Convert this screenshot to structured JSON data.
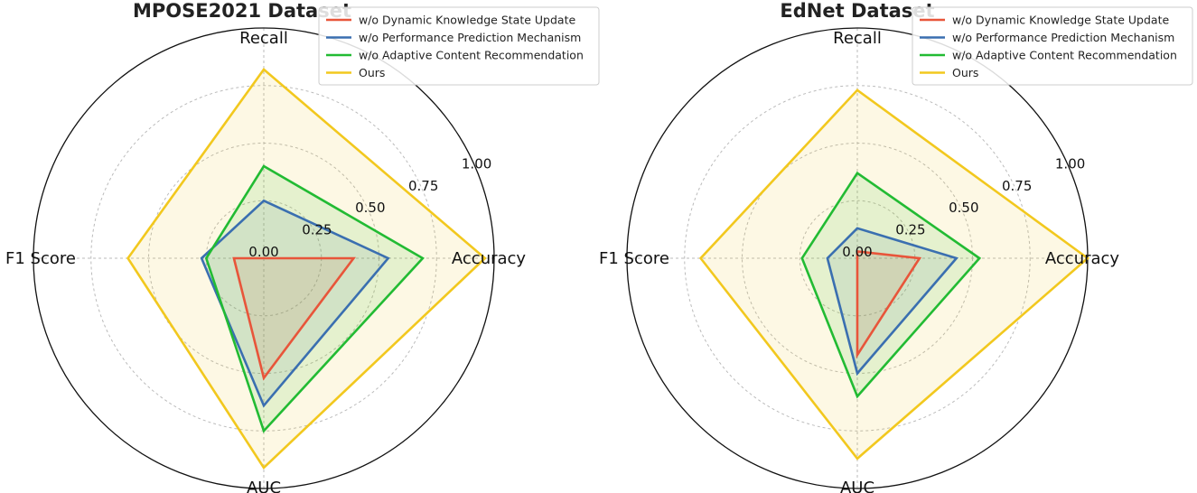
{
  "chart_data": [
    {
      "type": "radar",
      "title": "MPOSE2021 Dataset",
      "axes": [
        "Accuracy",
        "Recall",
        "F1 Score",
        "AUC"
      ],
      "rticks": [
        "0.00",
        "0.25",
        "0.50",
        "0.75",
        "1.00"
      ],
      "rlim": [
        0,
        1
      ],
      "grid": true,
      "legend_position": "top-right",
      "series": [
        {
          "name": "w/o Dynamic Knowledge State Update",
          "color": "#e8553a",
          "values": [
            0.39,
            0.0,
            0.13,
            0.52
          ]
        },
        {
          "name": "w/o Performance Prediction Mechanism",
          "color": "#3a6fb0",
          "values": [
            0.54,
            0.25,
            0.27,
            0.64
          ]
        },
        {
          "name": "w/o Adaptive Content Recommendation",
          "color": "#22bb33",
          "values": [
            0.69,
            0.4,
            0.25,
            0.75
          ]
        },
        {
          "name": "Ours",
          "color": "#f2c81e",
          "values": [
            0.96,
            0.82,
            0.59,
            0.91
          ]
        }
      ]
    },
    {
      "type": "radar",
      "title": "EdNet Dataset",
      "axes": [
        "Accuracy",
        "Recall",
        "F1 Score",
        "AUC"
      ],
      "rticks": [
        "0.00",
        "0.25",
        "0.50",
        "0.75",
        "1.00"
      ],
      "rlim": [
        0,
        1
      ],
      "grid": true,
      "legend_position": "top-right",
      "series": [
        {
          "name": "w/o Dynamic Knowledge State Update",
          "color": "#e8553a",
          "values": [
            0.27,
            0.03,
            0.0,
            0.42
          ]
        },
        {
          "name": "w/o Performance Prediction Mechanism",
          "color": "#3a6fb0",
          "values": [
            0.43,
            0.13,
            0.13,
            0.5
          ]
        },
        {
          "name": "w/o Adaptive Content Recommendation",
          "color": "#22bb33",
          "values": [
            0.53,
            0.37,
            0.24,
            0.6
          ]
        },
        {
          "name": "Ours",
          "color": "#f2c81e",
          "values": [
            1.0,
            0.73,
            0.68,
            0.87
          ]
        }
      ]
    }
  ]
}
